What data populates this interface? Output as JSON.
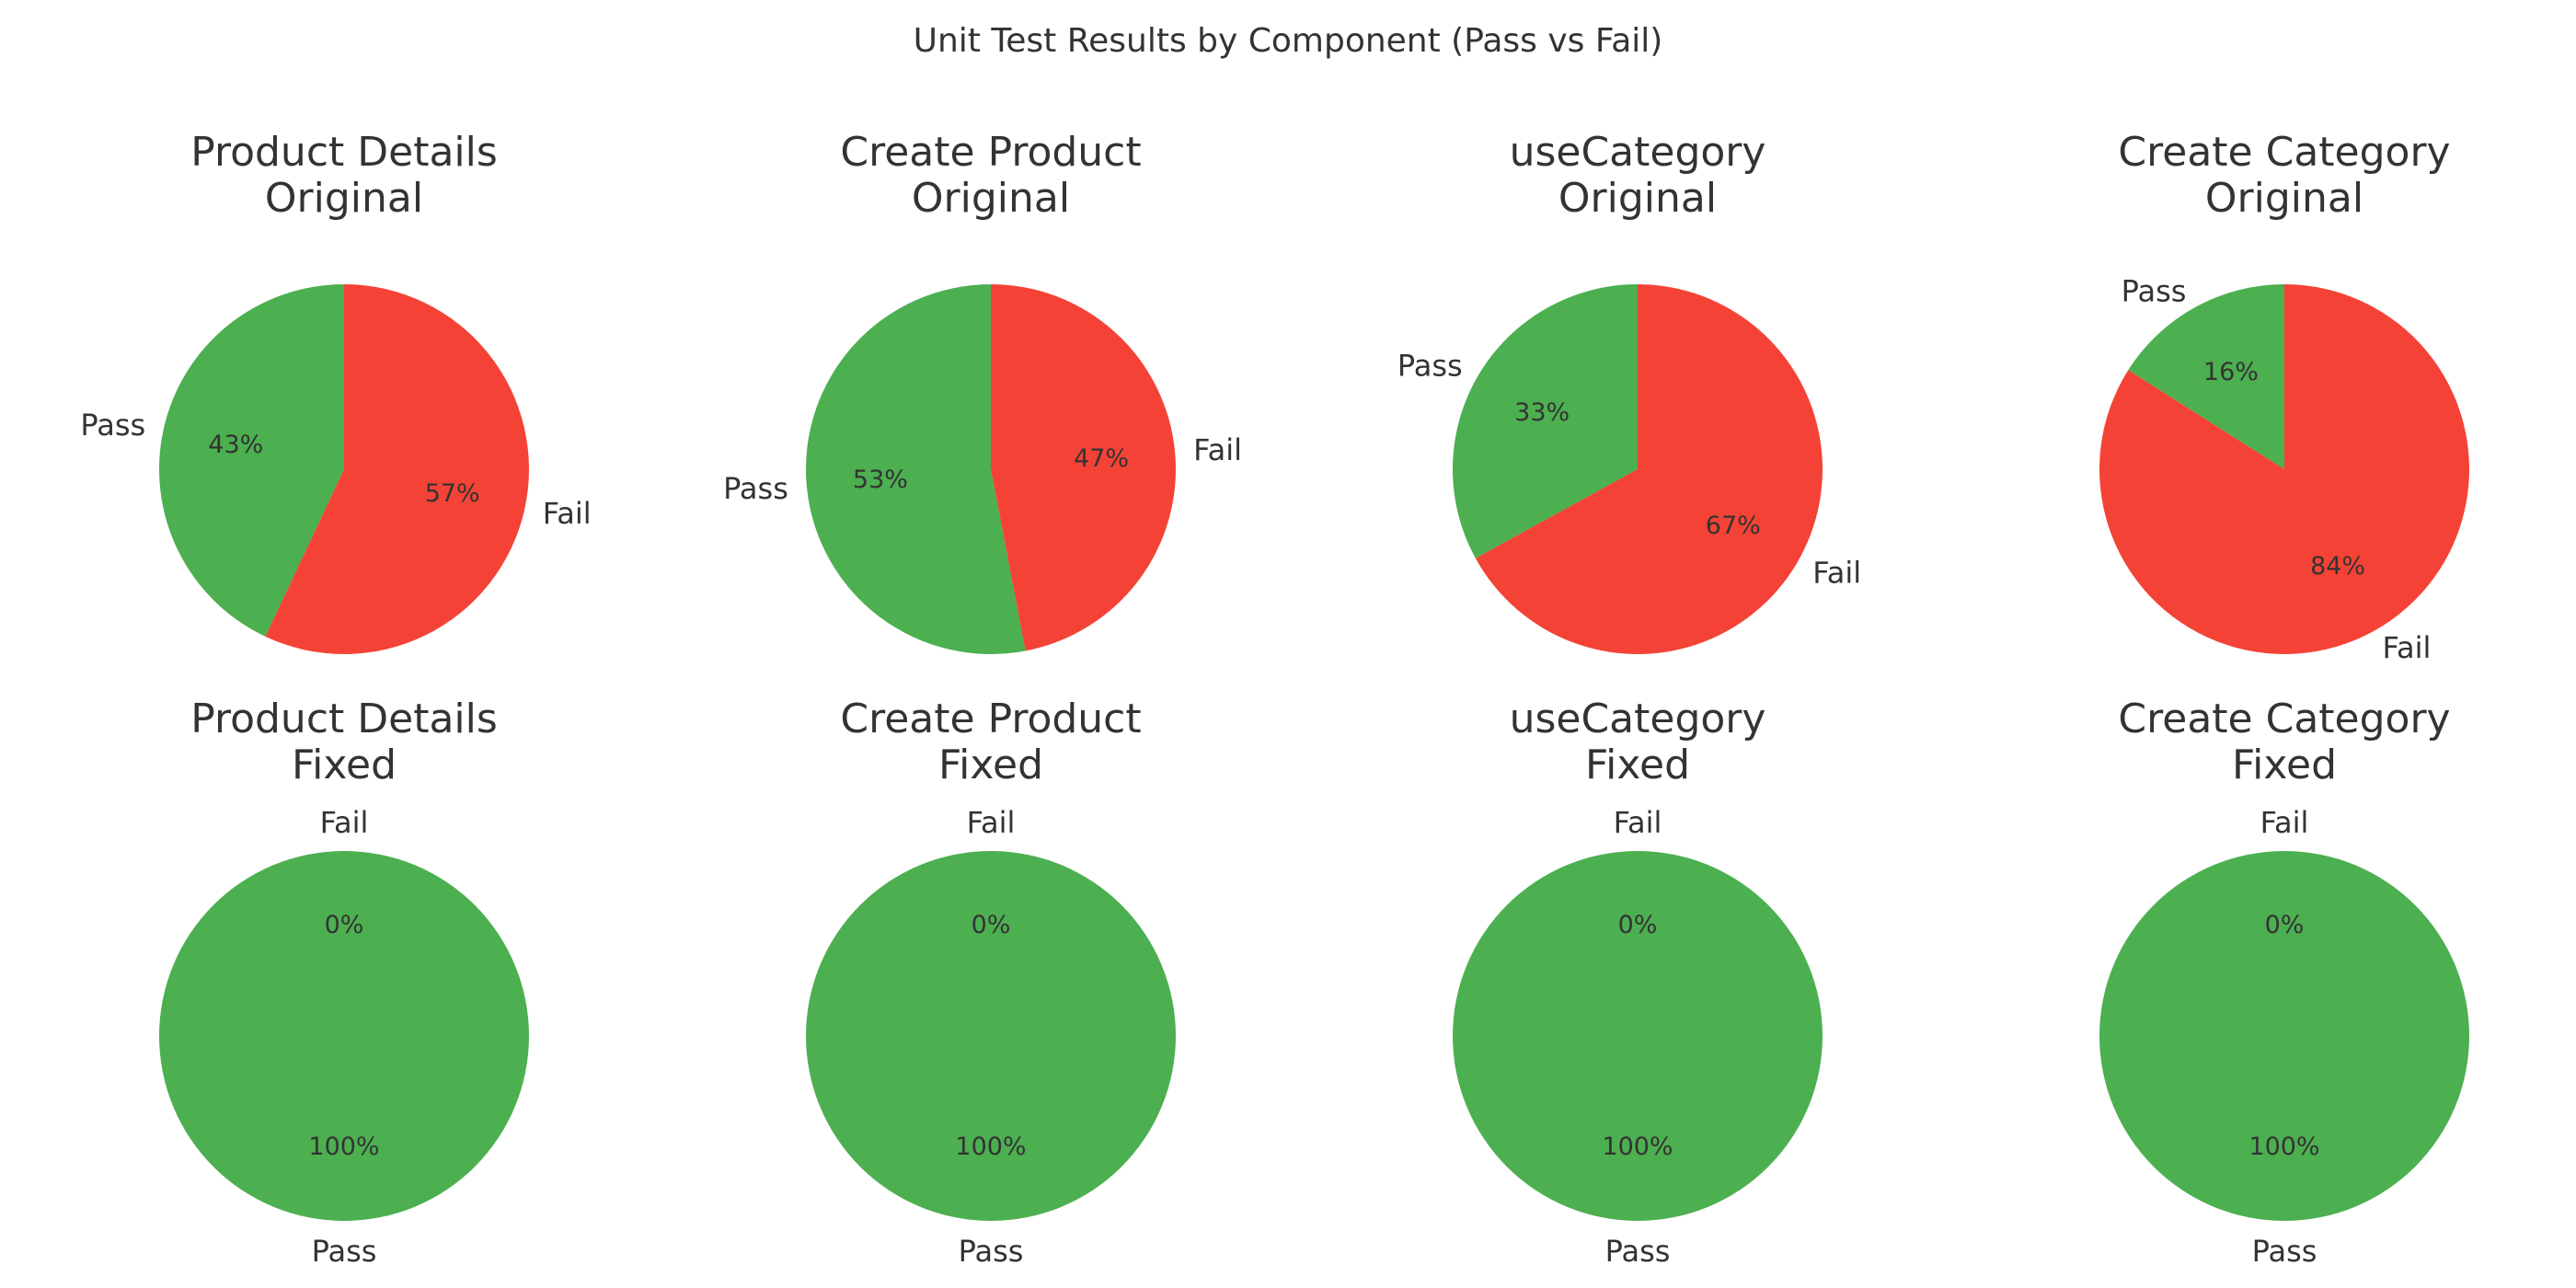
{
  "figure": {
    "title": "Unit Test Results by Component (Pass vs Fail)"
  },
  "chart_data": [
    {
      "type": "pie",
      "title": "Product Details\nOriginal",
      "labels": [
        "Pass",
        "Fail"
      ],
      "values": [
        43,
        57
      ],
      "colors": [
        "#4caf50",
        "#f44336"
      ],
      "pct_labels": [
        "43%",
        "57%"
      ],
      "start_angle": 90,
      "direction": "counterclockwise"
    },
    {
      "type": "pie",
      "title": "Create Product\nOriginal",
      "labels": [
        "Pass",
        "Fail"
      ],
      "values": [
        53,
        47
      ],
      "colors": [
        "#4caf50",
        "#f44336"
      ],
      "pct_labels": [
        "53%",
        "47%"
      ],
      "start_angle": 90,
      "direction": "counterclockwise"
    },
    {
      "type": "pie",
      "title": "useCategory\nOriginal",
      "labels": [
        "Pass",
        "Fail"
      ],
      "values": [
        33,
        67
      ],
      "colors": [
        "#4caf50",
        "#f44336"
      ],
      "pct_labels": [
        "33%",
        "67%"
      ],
      "start_angle": 90,
      "direction": "counterclockwise"
    },
    {
      "type": "pie",
      "title": "Create Category\nOriginal",
      "labels": [
        "Pass",
        "Fail"
      ],
      "values": [
        16,
        84
      ],
      "colors": [
        "#4caf50",
        "#f44336"
      ],
      "pct_labels": [
        "16%",
        "84%"
      ],
      "start_angle": 90,
      "direction": "counterclockwise"
    },
    {
      "type": "pie",
      "title": "Product Details\nFixed",
      "labels": [
        "Pass",
        "Fail"
      ],
      "values": [
        100,
        0
      ],
      "colors": [
        "#4caf50",
        "#f44336"
      ],
      "pct_labels": [
        "100%",
        "0%"
      ],
      "start_angle": 90,
      "direction": "counterclockwise"
    },
    {
      "type": "pie",
      "title": "Create Product\nFixed",
      "labels": [
        "Pass",
        "Fail"
      ],
      "values": [
        100,
        0
      ],
      "colors": [
        "#4caf50",
        "#f44336"
      ],
      "pct_labels": [
        "100%",
        "0%"
      ],
      "start_angle": 90,
      "direction": "counterclockwise"
    },
    {
      "type": "pie",
      "title": "useCategory\nFixed",
      "labels": [
        "Pass",
        "Fail"
      ],
      "values": [
        100,
        0
      ],
      "colors": [
        "#4caf50",
        "#f44336"
      ],
      "pct_labels": [
        "100%",
        "0%"
      ],
      "start_angle": 90,
      "direction": "counterclockwise"
    },
    {
      "type": "pie",
      "title": "Create Category\nFixed",
      "labels": [
        "Pass",
        "Fail"
      ],
      "values": [
        100,
        0
      ],
      "colors": [
        "#4caf50",
        "#f44336"
      ],
      "pct_labels": [
        "100%",
        "0%"
      ],
      "start_angle": 90,
      "direction": "counterclockwise"
    }
  ]
}
